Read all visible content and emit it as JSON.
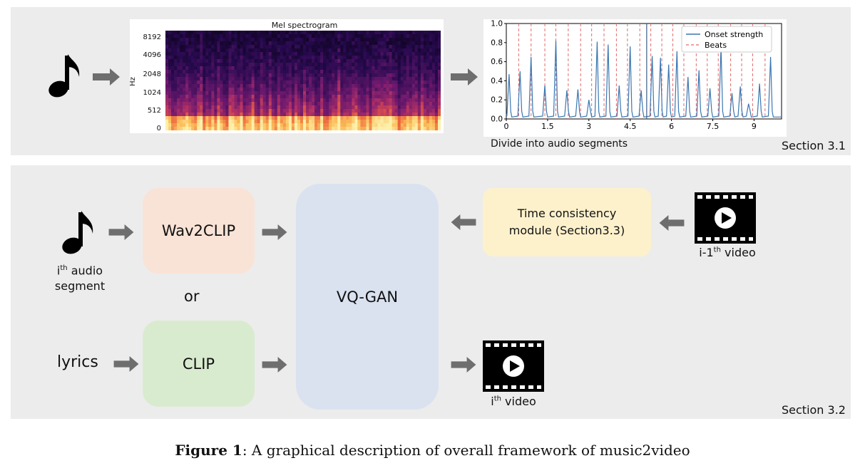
{
  "top_section": {
    "section_label": "Section 3.1",
    "spectrogram": {
      "title": "Mel spectrogram",
      "ylabel": "Hz",
      "yticks": [
        "8192",
        "4096",
        "2048",
        "1024",
        "512",
        "0"
      ]
    },
    "onset_plot": {
      "chart_data": {
        "type": "line",
        "xlim": [
          0,
          10
        ],
        "ylim": [
          0.0,
          1.0
        ],
        "xticks": [
          "0",
          "1.5",
          "3",
          "4.5",
          "6",
          "7.5",
          "9"
        ],
        "yticks": [
          "0.0",
          "0.2",
          "0.4",
          "0.6",
          "0.8",
          "1.0"
        ],
        "legend": [
          "Onset strength",
          "Beats"
        ],
        "legend_position": "top-right",
        "series": [
          {
            "name": "Onset strength",
            "x": [
              0.1,
              0.5,
              0.9,
              1.4,
              1.8,
              2.2,
              2.6,
              3.0,
              3.3,
              3.7,
              4.1,
              4.5,
              4.9,
              5.3,
              5.6,
              5.9,
              6.2,
              6.6,
              7.0,
              7.4,
              7.8,
              8.2,
              8.5,
              8.8,
              9.2,
              9.6
            ],
            "y": [
              0.47,
              0.5,
              0.65,
              0.35,
              0.82,
              0.3,
              0.31,
              0.2,
              0.81,
              0.78,
              0.35,
              0.76,
              0.3,
              0.66,
              0.64,
              0.57,
              0.71,
              0.44,
              0.51,
              0.32,
              0.75,
              0.27,
              0.34,
              0.16,
              0.37,
              0.65
            ]
          },
          {
            "name": "Beats",
            "x": [
              0.45,
              0.9,
              1.4,
              1.8,
              2.25,
              2.7,
              3.1,
              3.55,
              4.0,
              4.4,
              4.85,
              5.25,
              5.65,
              6.05,
              6.45,
              6.9,
              7.3,
              7.7,
              8.15,
              8.55,
              8.95,
              9.4
            ]
          }
        ]
      }
    },
    "divide_label": "Divide into audio segments"
  },
  "bottom_section": {
    "section_label": "Section 3.2",
    "wav2clip": "Wav2CLIP",
    "clip": "CLIP",
    "vqgan": "VQ-GAN",
    "or_text": "or",
    "time_module_line1": "Time consistency",
    "time_module_line2": "module (Section3.3)",
    "audio_seg_i": "i",
    "audio_seg_sup": "th",
    "audio_seg_rest1": " audio",
    "audio_seg_rest2": "segment",
    "lyrics": "lyrics",
    "prev_video_pre": "i-1",
    "prev_video_sup": "th",
    "prev_video_post": " video",
    "cur_video_pre": "i",
    "cur_video_sup": "th",
    "cur_video_post": " video"
  },
  "caption": {
    "label": "Figure 1",
    "text": ": A graphical description of overall framework of music2video"
  },
  "colors": {
    "wav2clip": "#f9e3d6",
    "clip": "#d9ebcf",
    "vqgan": "#dae2f0",
    "time_module": "#fdf1cc",
    "panel": "#ececec",
    "arrow": "#6e6e6e",
    "onset": "#3b76b0",
    "beats": "#e36b6b"
  }
}
